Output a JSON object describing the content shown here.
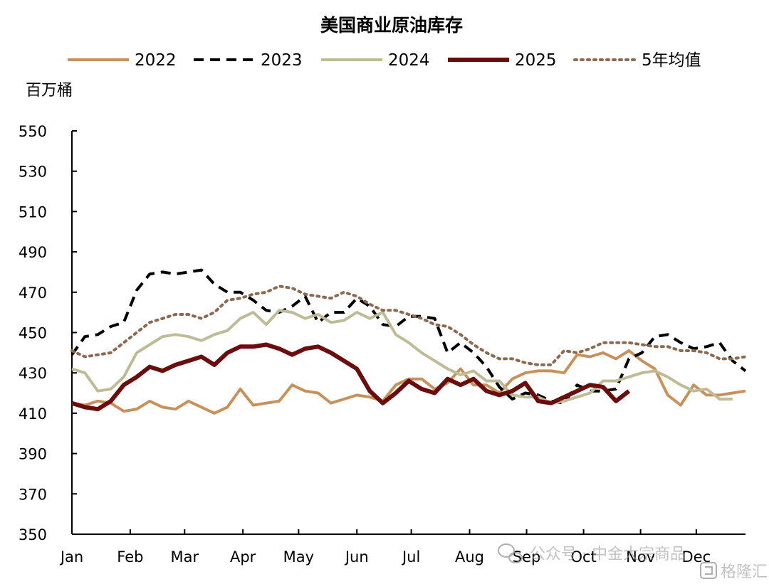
{
  "chart_data": {
    "type": "line",
    "title": "美国商业原油库存",
    "ylabel": "百万桶",
    "xlabel": "",
    "ylim": [
      350,
      550
    ],
    "yticks": [
      350,
      370,
      390,
      410,
      430,
      450,
      470,
      490,
      510,
      530,
      550
    ],
    "xlim": [
      1,
      53
    ],
    "xticks": [
      {
        "label": "Jan",
        "week": 1
      },
      {
        "label": "Feb",
        "week": 5.5
      },
      {
        "label": "Mar",
        "week": 9.7
      },
      {
        "label": "Apr",
        "week": 14.2
      },
      {
        "label": "May",
        "week": 18.5
      },
      {
        "label": "Jun",
        "week": 23
      },
      {
        "label": "Jul",
        "week": 27.2
      },
      {
        "label": "Aug",
        "week": 31.7
      },
      {
        "label": "Sep",
        "week": 36.1
      },
      {
        "label": "Oct",
        "week": 40.5
      },
      {
        "label": "Nov",
        "week": 44.9
      },
      {
        "label": "Dec",
        "week": 49.2
      }
    ],
    "legend_position": "top",
    "grid": false,
    "series": [
      {
        "name": "2022",
        "color": "#C8915A",
        "style": "solid",
        "width": 4,
        "x": [
          1,
          2,
          3,
          4,
          5,
          6,
          7,
          8,
          9,
          10,
          11,
          12,
          13,
          14,
          15,
          16,
          17,
          18,
          19,
          20,
          21,
          22,
          23,
          24,
          25,
          26,
          27,
          28,
          29,
          30,
          31,
          32,
          33,
          34,
          35,
          36,
          37,
          38,
          39,
          40,
          41,
          42,
          43,
          44,
          45,
          46,
          47,
          48,
          49,
          50,
          51,
          52,
          53
        ],
        "values": [
          415,
          414,
          416,
          415,
          411,
          412,
          416,
          413,
          412,
          416,
          413,
          410,
          413,
          422,
          414,
          415,
          416,
          424,
          421,
          420,
          415,
          417,
          419,
          418,
          416,
          424,
          427,
          427,
          422,
          425,
          432,
          424,
          424,
          420,
          427,
          430,
          431,
          431,
          430,
          439,
          438,
          440,
          437,
          441,
          436,
          432,
          419,
          414,
          424,
          419,
          419,
          420,
          421
        ]
      },
      {
        "name": "2023",
        "color": "#000000",
        "style": "dashed",
        "width": 4,
        "x": [
          1,
          2,
          3,
          4,
          5,
          6,
          7,
          8,
          9,
          10,
          11,
          12,
          13,
          14,
          15,
          16,
          17,
          18,
          19,
          20,
          21,
          22,
          23,
          24,
          25,
          26,
          27,
          28,
          29,
          30,
          31,
          32,
          33,
          34,
          35,
          36,
          37,
          38,
          39,
          40,
          41,
          42,
          43,
          44,
          45,
          46,
          47,
          48,
          49,
          50,
          51,
          52,
          53
        ],
        "values": [
          439,
          448,
          449,
          453,
          455,
          471,
          479,
          480,
          479,
          480,
          481,
          474,
          470,
          470,
          466,
          461,
          460,
          463,
          468,
          455,
          460,
          460,
          467,
          463,
          454,
          453,
          458,
          458,
          457,
          440,
          445,
          440,
          433,
          423,
          417,
          420,
          419,
          416,
          415,
          424,
          421,
          421,
          422,
          437,
          440,
          448,
          449,
          445,
          442,
          443,
          445,
          436,
          431
        ]
      },
      {
        "name": "2024",
        "color": "#BDBC96",
        "style": "solid",
        "width": 4,
        "x": [
          1,
          2,
          3,
          4,
          5,
          6,
          7,
          8,
          9,
          10,
          11,
          12,
          13,
          14,
          15,
          16,
          17,
          18,
          19,
          20,
          21,
          22,
          23,
          24,
          25,
          26,
          27,
          28,
          29,
          30,
          31,
          32,
          33,
          34,
          35,
          36,
          37,
          38,
          39,
          40,
          41,
          42,
          43,
          44,
          45,
          46,
          47,
          48,
          49,
          50,
          51,
          52
        ],
        "values": [
          432,
          430,
          421,
          422,
          428,
          440,
          444,
          448,
          449,
          448,
          446,
          449,
          451,
          457,
          460,
          454,
          461,
          460,
          457,
          459,
          455,
          456,
          460,
          457,
          460,
          449,
          445,
          440,
          436,
          432,
          429,
          431,
          426,
          426,
          419,
          418,
          418,
          415,
          416,
          418,
          420,
          426,
          426,
          428,
          430,
          431,
          428,
          424,
          421,
          422,
          417,
          417
        ]
      },
      {
        "name": "2025",
        "color": "#6B0D0D",
        "style": "solid",
        "width": 6,
        "x": [
          1,
          2,
          3,
          4,
          5,
          6,
          7,
          8,
          9,
          10,
          11,
          12,
          13,
          14,
          15,
          16,
          17,
          18,
          19,
          20,
          21,
          22,
          23,
          24,
          25,
          26,
          27,
          28,
          29,
          30,
          31,
          32,
          33,
          34,
          35,
          36,
          37,
          38,
          39,
          40,
          41,
          42,
          43,
          44
        ],
        "values": [
          415,
          413,
          412,
          416,
          424,
          428,
          433,
          431,
          434,
          436,
          438,
          434,
          440,
          443,
          443,
          444,
          442,
          439,
          442,
          443,
          440,
          436,
          432,
          421,
          415,
          420,
          426,
          422,
          420,
          427,
          424,
          427,
          421,
          419,
          421,
          425,
          416,
          415,
          418,
          421,
          424,
          423,
          416,
          421
        ]
      },
      {
        "name": "5年均值",
        "color": "#8C6A52",
        "style": "dotted",
        "width": 4,
        "x": [
          1,
          2,
          3,
          4,
          5,
          6,
          7,
          8,
          9,
          10,
          11,
          12,
          13,
          14,
          15,
          16,
          17,
          18,
          19,
          20,
          21,
          22,
          23,
          24,
          25,
          26,
          27,
          28,
          29,
          30,
          31,
          32,
          33,
          34,
          35,
          36,
          37,
          38,
          39,
          40,
          41,
          42,
          43,
          44,
          45,
          46,
          47,
          48,
          49,
          50,
          51,
          52,
          53
        ],
        "values": [
          441,
          438,
          439,
          440,
          445,
          450,
          455,
          457,
          459,
          459,
          457,
          460,
          466,
          467,
          469,
          470,
          473,
          472,
          469,
          468,
          467,
          470,
          468,
          464,
          461,
          461,
          459,
          457,
          454,
          453,
          449,
          444,
          440,
          437,
          437,
          435,
          434,
          434,
          441,
          440,
          442,
          445,
          445,
          445,
          444,
          443,
          443,
          441,
          441,
          440,
          437,
          437,
          438
        ]
      }
    ]
  },
  "watermark": {
    "wechat_text": "公众号 · 中金大宗商品",
    "site_text": "格隆汇",
    "wechat_icon": "wechat-icon",
    "site_icon": "gelonghui-logo-icon"
  }
}
